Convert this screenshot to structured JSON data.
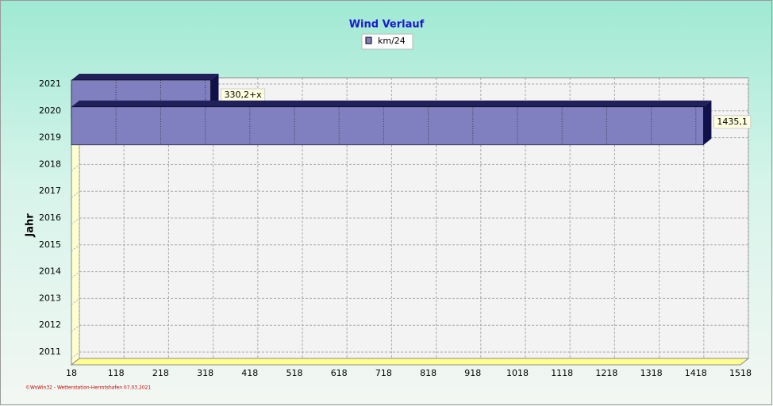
{
  "chart_data": {
    "type": "hbar3d",
    "title": "Wind Verlauf",
    "ylabel": "Jahr",
    "categories": [
      "2021",
      "2020",
      "2019",
      "2018",
      "2017",
      "2016",
      "2015",
      "2014",
      "2013",
      "2012",
      "2011"
    ],
    "series": [
      {
        "name": "km/24",
        "color": "#8080c0",
        "values": [
          330.2,
          1435.1,
          null,
          null,
          null,
          null,
          null,
          null,
          null,
          null,
          null
        ],
        "value_labels": [
          "330,2+x",
          "1435,1",
          null,
          null,
          null,
          null,
          null,
          null,
          null,
          null,
          null
        ]
      }
    ],
    "xlim": [
      18,
      1518
    ],
    "xticks": [
      18,
      118,
      218,
      318,
      418,
      518,
      618,
      718,
      818,
      918,
      1018,
      1118,
      1218,
      1318,
      1418,
      1518
    ],
    "grid": true,
    "legend": "top",
    "footer": "©WsWin32 - Wetterstation-Herrotshafen 07.03.2021"
  }
}
